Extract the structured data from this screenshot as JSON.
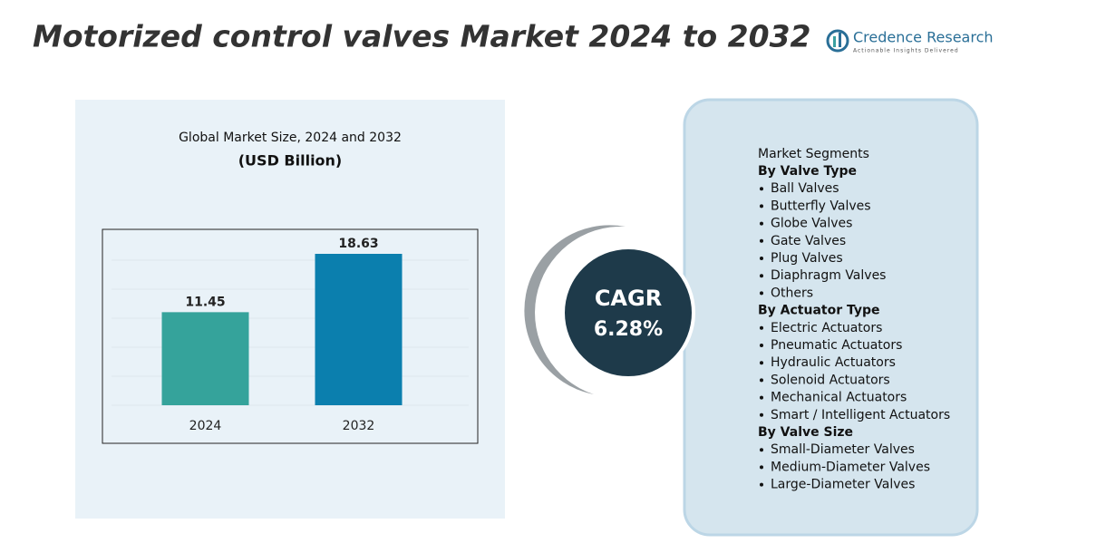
{
  "header": {
    "title": "Motorized control valves Market 2024 to 2032",
    "logo_name": "Credence Research",
    "logo_tagline": "Actionable Insights Delivered"
  },
  "chart_data": {
    "type": "bar",
    "title": "Global Market Size, 2024 and 2032",
    "subtitle": "(USD Billion)",
    "categories": [
      "2024",
      "2032"
    ],
    "values": [
      11.45,
      18.63
    ],
    "colors": [
      "#35a39b",
      "#0b7fae"
    ],
    "grid": true
  },
  "cagr": {
    "label": "CAGR",
    "value": "6.28%"
  },
  "segments": {
    "title": "Market Segments",
    "groups": [
      {
        "name": "By Valve Type",
        "items": [
          "Ball Valves",
          "Butterfly Valves",
          "Globe Valves",
          "Gate Valves",
          "Plug Valves",
          "Diaphragm Valves",
          "Others"
        ]
      },
      {
        "name": "By Actuator Type",
        "items": [
          "Electric Actuators",
          "Pneumatic Actuators",
          "Hydraulic Actuators",
          "Solenoid Actuators",
          "Mechanical Actuators",
          "Smart / Intelligent Actuators"
        ]
      },
      {
        "name": "By Valve Size",
        "items": [
          "Small-Diameter Valves",
          "Medium-Diameter Valves",
          "Large-Diameter Valves"
        ]
      }
    ]
  }
}
